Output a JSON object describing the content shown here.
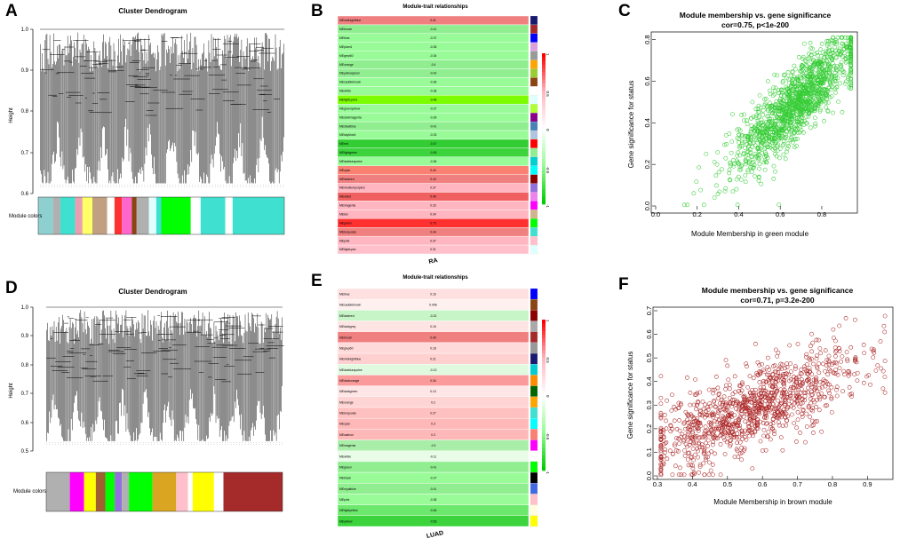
{
  "panels": {
    "A": "A",
    "B": "B",
    "C": "C",
    "D": "D",
    "E": "E",
    "F": "F"
  },
  "dendroA": {
    "title": "Cluster Dendrogram",
    "ylabel": "Height",
    "ticks": [
      "1.0",
      "0.9",
      "0.8",
      "0.7",
      "0.6"
    ],
    "bar_label": "Module colors",
    "module_colors": [
      "#8ecfcf",
      "#b0b0b0",
      "#e8a0b0",
      "#40e0d0",
      "#ffff66",
      "#c0a080",
      "#ff3030",
      "#ff66cc",
      "#00ff00",
      "#40e0d0"
    ]
  },
  "dendroD": {
    "title": "Cluster Dendrogram",
    "ylabel": "Height",
    "ticks": [
      "1.0",
      "0.9",
      "0.8",
      "0.7",
      "0.6",
      "0.5"
    ],
    "bar_label": "Module colors",
    "module_colors": [
      "#b0b0b0",
      "#ff00ff",
      "#ffff00",
      "#a06030",
      "#00ff00",
      "#ffc0cb",
      "#ffff00",
      "#a52a2a"
    ]
  },
  "heatB": {
    "title": "Module-trait relationships",
    "xlabel": "RA",
    "rows": [
      {
        "name": "MEmidnightblue",
        "value": "0.41",
        "color": "#f08080",
        "sw": "#191970"
      },
      {
        "name": "MEbrown",
        "value": "-0.41",
        "color": "#90ee90",
        "sw": "#a52a2a"
      },
      {
        "name": "MEblue",
        "value": "-0.37",
        "color": "#98fb98",
        "sw": "#0000ff"
      },
      {
        "name": "MEplum1",
        "value": "-0.35",
        "color": "#98fb98",
        "sw": "#dda0dd"
      },
      {
        "name": "MEgrey60",
        "value": "-0.34",
        "color": "#98fb98",
        "sw": "#999999"
      },
      {
        "name": "MEorange",
        "value": "-0.4",
        "color": "#90ee90",
        "sw": "#ffa500"
      },
      {
        "name": "MEyellowgreen",
        "value": "-0.42",
        "color": "#90ee90",
        "sw": "#9acd32"
      },
      {
        "name": "MEsaddlebrown",
        "value": "-0.36",
        "color": "#98fb98",
        "sw": "#8b4513"
      },
      {
        "name": "MEwhite",
        "value": "-0.38",
        "color": "#98fb98",
        "sw": "#ffffff"
      },
      {
        "name": "MElightcyan1",
        "value": "-0.48",
        "color": "#7cfc00",
        "sw": "#e0ffff"
      },
      {
        "name": "MEgreenyellow",
        "value": "-0.37",
        "color": "#98fb98",
        "sw": "#adff2f"
      },
      {
        "name": "MEdarkmagenta",
        "value": "-0.39",
        "color": "#98fb98",
        "sw": "#8b008b"
      },
      {
        "name": "MEsteelblue",
        "value": "-0.41",
        "color": "#90ee90",
        "sw": "#4682b4"
      },
      {
        "name": "MEskyblue4",
        "value": "-0.33",
        "color": "#98fb98",
        "sw": "#b0c4de"
      },
      {
        "name": "MEred",
        "value": "-0.47",
        "color": "#32cd32",
        "sw": "#ff0000"
      },
      {
        "name": "MElightgreen",
        "value": "-0.45",
        "color": "#3cd33c",
        "sw": "#90ee90"
      },
      {
        "name": "MEdarkturquoise",
        "value": "-0.36",
        "color": "#98fb98",
        "sw": "#00ced1"
      },
      {
        "name": "MEcyan",
        "value": "0.42",
        "color": "#fa8072",
        "sw": "#00ffff"
      },
      {
        "name": "MEdarkred",
        "value": "0.43",
        "color": "#f08080",
        "sw": "#8b0000"
      },
      {
        "name": "MEmediumpurple3",
        "value": "0.37",
        "color": "#ffb6c1",
        "sw": "#9370db"
      },
      {
        "name": "MEviolet",
        "value": "0.46",
        "color": "#f06060",
        "sw": "#ee82ee"
      },
      {
        "name": "MEmagenta",
        "value": "0.33",
        "color": "#ffb6c1",
        "sw": "#ff00ff"
      },
      {
        "name": "MEtan",
        "value": "0.34",
        "color": "#ffb6c1",
        "sw": "#d2b48c"
      },
      {
        "name": "MEgreen",
        "value": "0.75",
        "color": "#ff3030",
        "sw": "#00ff00"
      },
      {
        "name": "MEturquoise",
        "value": "0.44",
        "color": "#f08080",
        "sw": "#40e0d0"
      },
      {
        "name": "MEpink",
        "value": "0.37",
        "color": "#ffb6c1",
        "sw": "#ffc0cb"
      },
      {
        "name": "MElightcyan",
        "value": "0.31",
        "color": "#ffc0cb",
        "sw": "#e0ffff"
      }
    ],
    "legend": [
      "1",
      "0.5",
      "0",
      "-0.5",
      "-1"
    ]
  },
  "heatE": {
    "title": "Module-trait relationships",
    "xlabel": "LUAD",
    "rows": [
      {
        "name": "MEblue",
        "value": "0.16",
        "color": "#ffe0e0",
        "sw": "#0000ff"
      },
      {
        "name": "MEsaddlebrown",
        "value": "0.096",
        "color": "#fff0f0",
        "sw": "#8b4513"
      },
      {
        "name": "MEdarkred",
        "value": "-0.22",
        "color": "#c8f5c8",
        "sw": "#8b0000"
      },
      {
        "name": "MEdarkgrey",
        "value": "0.15",
        "color": "#ffe4e4",
        "sw": "#a9a9a9"
      },
      {
        "name": "MEbrown",
        "value": "0.49",
        "color": "#f08080",
        "sw": "#a52a2a"
      },
      {
        "name": "MEgrey60",
        "value": "0.18",
        "color": "#ffdada",
        "sw": "#999999"
      },
      {
        "name": "MEmidnightblue",
        "value": "0.21",
        "color": "#ffd0d0",
        "sw": "#191970"
      },
      {
        "name": "MEdarkturquoise",
        "value": "-0.13",
        "color": "#e0fae0",
        "sw": "#00ced1"
      },
      {
        "name": "MEdarkorange",
        "value": "0.34",
        "color": "#fa9a9a",
        "sw": "#ff8c00"
      },
      {
        "name": "MEdarkgreen",
        "value": "0.13",
        "color": "#ffe6e6",
        "sw": "#006400"
      },
      {
        "name": "MEorange",
        "value": "0.2",
        "color": "#ffd4d4",
        "sw": "#ffa500"
      },
      {
        "name": "MEturquoise",
        "value": "0.27",
        "color": "#ffc0c0",
        "sw": "#40e0d0"
      },
      {
        "name": "MEcyan",
        "value": "0.3",
        "color": "#ffb8b8",
        "sw": "#00ffff"
      },
      {
        "name": "MEsalmon",
        "value": "0.3",
        "color": "#ffb8b8",
        "sw": "#fa8072"
      },
      {
        "name": "MEmagenta",
        "value": "-0.3",
        "color": "#a8eea8",
        "sw": "#ff00ff"
      },
      {
        "name": "MEwhite",
        "value": "-0.11",
        "color": "#e8fce8",
        "sw": "#ffffff"
      },
      {
        "name": "MEgreen",
        "value": "-0.41",
        "color": "#90ee90",
        "sw": "#00ff00"
      },
      {
        "name": "MEblack",
        "value": "-0.37",
        "color": "#98fb98",
        "sw": "#000000"
      },
      {
        "name": "MEroyalblue",
        "value": "-0.41",
        "color": "#90ee90",
        "sw": "#4169e1"
      },
      {
        "name": "MEpink",
        "value": "-0.38",
        "color": "#98fb98",
        "sw": "#ffc0cb"
      },
      {
        "name": "MElightyellow",
        "value": "-0.46",
        "color": "#6ce86c",
        "sw": "#ffffe0"
      },
      {
        "name": "MEyellow",
        "value": "-0.53",
        "color": "#3cd33c",
        "sw": "#ffff00"
      }
    ],
    "legend": [
      "1",
      "0.5",
      "0",
      "-0.5",
      "-1"
    ]
  },
  "chart_data": [
    {
      "type": "scatter",
      "title": "Module membership vs. gene significance",
      "subtitle": "cor=0.75, p<1e-200",
      "xlabel": "Module Membership in green module",
      "ylabel": "Gene significance for status",
      "xlim": [
        0.0,
        0.95
      ],
      "ylim": [
        0.0,
        0.82
      ],
      "xticks": [
        "0.0",
        "0.2",
        "0.4",
        "0.6",
        "0.8"
      ],
      "yticks": [
        "0.0",
        "0.2",
        "0.4",
        "0.6",
        "0.8"
      ],
      "point_color": "#33cc33",
      "n_points": 1400,
      "trend": {
        "slope": 0.95,
        "intercept": -0.15,
        "x_mean": 0.68,
        "x_sd": 0.15,
        "noise": 0.085
      }
    },
    {
      "type": "scatter",
      "title": "Module membership vs. gene significance",
      "subtitle": "cor=0.71, p=3.2e-200",
      "xlabel": "Module Membership in brown module",
      "ylabel": "Gene significance for status",
      "xlim": [
        0.3,
        0.96
      ],
      "ylim": [
        0.0,
        0.7
      ],
      "xticks": [
        "0.3",
        "0.4",
        "0.5",
        "0.6",
        "0.7",
        "0.8",
        "0.9"
      ],
      "yticks": [
        "0.0",
        "0.1",
        "0.2",
        "0.3",
        "0.4",
        "0.5",
        "0.6",
        "0.7"
      ],
      "point_color": "#aa2222",
      "n_points": 1100,
      "trend": {
        "slope": 0.62,
        "intercept": -0.07,
        "x_mean": 0.57,
        "x_sd": 0.15,
        "noise": 0.085
      }
    }
  ]
}
